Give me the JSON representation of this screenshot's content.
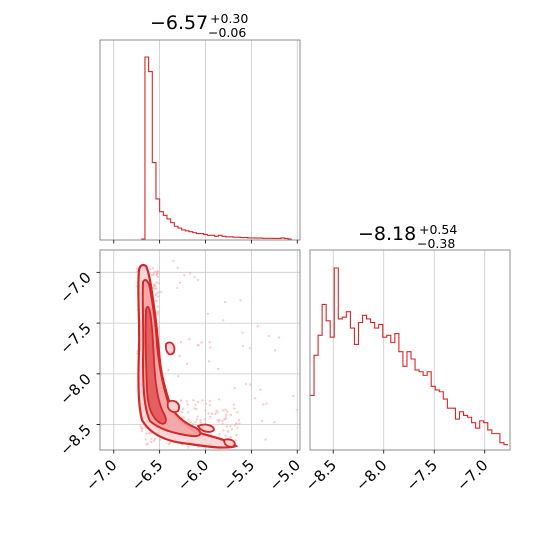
{
  "colors": {
    "series": "#d62728",
    "fill_light": "#f5b7b8",
    "fill_mid": "#ef8a8b",
    "grid": "#c8c8c8",
    "frame": "#8c8c8c"
  },
  "chart_data": [
    {
      "type": "histogram",
      "panel": "marginal-x",
      "title": {
        "median": "−6.57",
        "plus": "+0.30",
        "minus": "−0.06"
      },
      "xlim": [
        -7.15,
        -4.97
      ],
      "x_ticks": [
        -7.0,
        -6.5,
        -6.0,
        -5.5,
        -5.0
      ],
      "grid": true,
      "bins": {
        "x": [
          -6.7,
          -6.66,
          -6.62,
          -6.58,
          -6.54,
          -6.5,
          -6.46,
          -6.42,
          -6.38,
          -6.34,
          -6.3,
          -6.26,
          -6.22,
          -6.18,
          -6.14,
          -6.1,
          -6.06,
          -6.02,
          -5.98,
          -5.94,
          -5.9,
          -5.86,
          -5.82,
          -5.78,
          -5.74,
          -5.7,
          -5.66,
          -5.62,
          -5.58,
          -5.54,
          -5.5,
          -5.46,
          -5.42,
          -5.38,
          -5.34,
          -5.3,
          -5.26,
          -5.22,
          -5.18,
          -5.14,
          -5.1
        ],
        "counts": [
          0,
          1.0,
          0.92,
          0.42,
          0.22,
          0.15,
          0.13,
          0.11,
          0.09,
          0.07,
          0.06,
          0.05,
          0.045,
          0.04,
          0.035,
          0.03,
          0.03,
          0.025,
          0.02,
          0.02,
          0.015,
          0.02,
          0.015,
          0.012,
          0.012,
          0.01,
          0.01,
          0.008,
          0.008,
          0.006,
          0.006,
          0.005,
          0.005,
          0.004,
          0.004,
          0.004,
          0.003,
          0.003,
          0.006,
          0.003,
          0
        ]
      }
    },
    {
      "type": "histogram",
      "panel": "marginal-y",
      "title": {
        "median": "−8.18",
        "plus": "+0.54",
        "minus": "−0.38"
      },
      "xlim": [
        -8.73,
        -6.75
      ],
      "x_ticks": [
        -8.5,
        -8.0,
        -7.5,
        -7.0
      ],
      "grid": true,
      "bins": {
        "x": [
          -8.73,
          -8.69,
          -8.65,
          -8.61,
          -8.57,
          -8.53,
          -8.49,
          -8.45,
          -8.41,
          -8.37,
          -8.33,
          -8.29,
          -8.25,
          -8.21,
          -8.17,
          -8.13,
          -8.09,
          -8.05,
          -8.01,
          -7.97,
          -7.93,
          -7.89,
          -7.85,
          -7.81,
          -7.77,
          -7.73,
          -7.69,
          -7.65,
          -7.61,
          -7.57,
          -7.53,
          -7.49,
          -7.45,
          -7.41,
          -7.37,
          -7.33,
          -7.29,
          -7.25,
          -7.21,
          -7.17,
          -7.13,
          -7.09,
          -7.05,
          -7.01,
          -6.97,
          -6.93,
          -6.89,
          -6.85,
          -6.81
        ],
        "counts": [
          0.3,
          0.52,
          0.63,
          0.8,
          0.71,
          0.62,
          1.0,
          0.72,
          0.73,
          0.76,
          0.67,
          0.58,
          0.7,
          0.74,
          0.72,
          0.7,
          0.67,
          0.69,
          0.62,
          0.63,
          0.59,
          0.64,
          0.54,
          0.46,
          0.54,
          0.5,
          0.44,
          0.43,
          0.41,
          0.43,
          0.35,
          0.33,
          0.32,
          0.28,
          0.23,
          0.23,
          0.17,
          0.21,
          0.19,
          0.18,
          0.15,
          0.12,
          0.16,
          0.15,
          0.11,
          0.09,
          0.09,
          0.04,
          0.03
        ]
      }
    },
    {
      "type": "contour-scatter",
      "panel": "joint",
      "xlim": [
        -7.15,
        -4.97
      ],
      "ylim": [
        -8.75,
        -6.78
      ],
      "x_ticks": [
        -7.0,
        -6.5,
        -6.0,
        -5.5,
        -5.0
      ],
      "y_ticks": [
        -7.0,
        -7.5,
        -8.0,
        -8.5
      ],
      "grid": true,
      "contour_levels": 3
    }
  ],
  "tick_text": {
    "x_bottom_left": [
      "−7.0",
      "−6.5",
      "−6.0",
      "−5.5",
      "−5.0"
    ],
    "y_left": [
      "−7.0",
      "−7.5",
      "−8.0",
      "−8.5"
    ],
    "x_bottom_right": [
      "−8.5",
      "−8.0",
      "−7.5",
      "−7.0"
    ]
  }
}
